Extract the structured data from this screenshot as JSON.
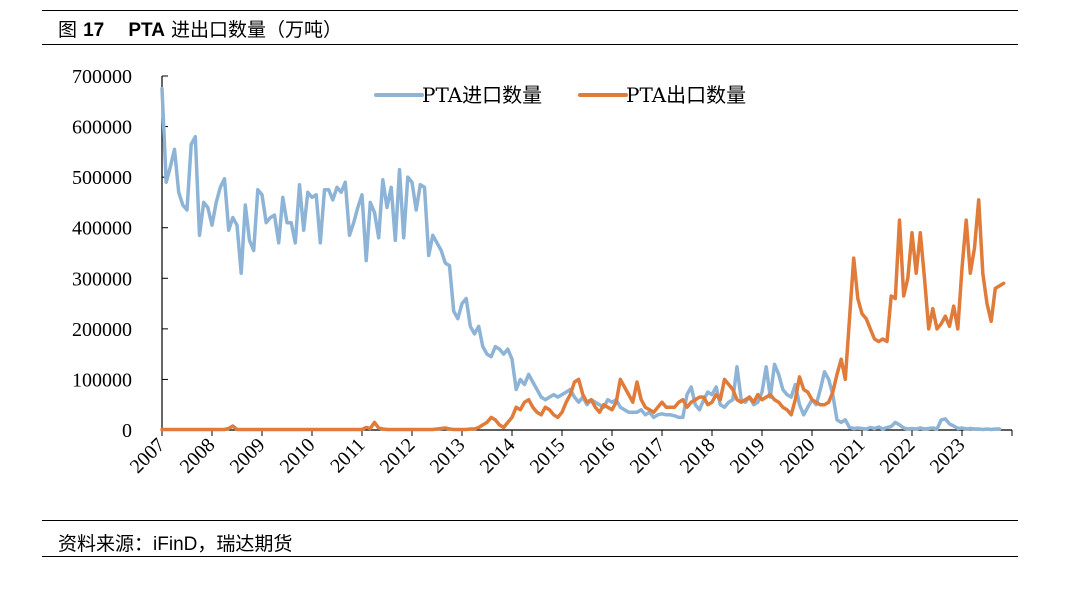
{
  "figure": {
    "label": "图",
    "number": "17",
    "title_prefix": "PTA",
    "title_suffix": "进出口数量（万吨）"
  },
  "source": {
    "prefix": "资料来源：",
    "brand": "iFinD",
    "suffix": "，瑞达期货"
  },
  "chart_data": {
    "type": "line",
    "title": "PTA 进出口数量（万吨）",
    "xlabel": "",
    "ylabel": "",
    "ylim": [
      0,
      700000
    ],
    "yticks": [
      0,
      100000,
      200000,
      300000,
      400000,
      500000,
      600000,
      700000
    ],
    "xticks": [
      "2007",
      "2008",
      "2009",
      "2010",
      "2011",
      "2012",
      "2013",
      "2014",
      "2015",
      "2016",
      "2017",
      "2018",
      "2019",
      "2020",
      "2021",
      "2022",
      "2023"
    ],
    "legend_position": "top-center",
    "grid": false,
    "x_start": "2007-01",
    "x_step": "month",
    "series": [
      {
        "name": "PTA进口数量",
        "color": "#8db4d6",
        "values": [
          675000,
          490000,
          520000,
          555000,
          470000,
          445000,
          435000,
          565000,
          580000,
          385000,
          450000,
          440000,
          405000,
          450000,
          480000,
          497000,
          395000,
          420000,
          405000,
          310000,
          445000,
          375000,
          355000,
          475000,
          465000,
          410000,
          420000,
          425000,
          370000,
          460000,
          410000,
          410000,
          370000,
          485000,
          395000,
          470000,
          460000,
          465000,
          370000,
          475000,
          475000,
          455000,
          480000,
          470000,
          490000,
          385000,
          410000,
          440000,
          465000,
          335000,
          450000,
          430000,
          380000,
          495000,
          440000,
          480000,
          375000,
          515000,
          380000,
          500000,
          490000,
          435000,
          485000,
          480000,
          345000,
          385000,
          370000,
          355000,
          330000,
          325000,
          235000,
          220000,
          250000,
          260000,
          205000,
          190000,
          205000,
          165000,
          150000,
          145000,
          165000,
          160000,
          150000,
          160000,
          140000,
          80000,
          100000,
          90000,
          110000,
          95000,
          80000,
          65000,
          60000,
          65000,
          70000,
          65000,
          70000,
          75000,
          80000,
          65000,
          55000,
          65000,
          50000,
          60000,
          55000,
          50000,
          45000,
          60000,
          55000,
          60000,
          45000,
          40000,
          35000,
          35000,
          35000,
          40000,
          30000,
          35000,
          25000,
          30000,
          32000,
          30000,
          30000,
          28000,
          25000,
          25000,
          70000,
          85000,
          50000,
          40000,
          60000,
          75000,
          70000,
          85000,
          50000,
          45000,
          55000,
          60000,
          125000,
          60000,
          55000,
          65000,
          50000,
          55000,
          75000,
          125000,
          65000,
          130000,
          110000,
          80000,
          70000,
          65000,
          90000,
          50000,
          30000,
          45000,
          60000,
          50000,
          80000,
          115000,
          100000,
          70000,
          20000,
          15000,
          20000,
          5000,
          3000,
          4000,
          3000,
          2000,
          5000,
          3000,
          6000,
          2000,
          5000,
          7000,
          15000,
          10000,
          4000,
          2000,
          3000,
          2000,
          4000,
          2000,
          3000,
          4000,
          2000,
          20000,
          22000,
          12000,
          8000,
          3000,
          4000,
          2000,
          3000,
          2000,
          2000,
          1000,
          2000,
          1000,
          2000,
          2000
        ]
      },
      {
        "name": "PTA出口数量",
        "color": "#e07b39",
        "values": [
          1000,
          1000,
          1000,
          1000,
          1000,
          1000,
          1000,
          1000,
          1000,
          1000,
          1000,
          1000,
          1000,
          1000,
          1000,
          1000,
          3000,
          8000,
          1000,
          1000,
          1000,
          1000,
          1000,
          1000,
          1000,
          1000,
          1000,
          1000,
          1000,
          1000,
          1000,
          1000,
          1000,
          1000,
          1000,
          1000,
          1000,
          1000,
          1000,
          1000,
          1000,
          1000,
          1000,
          1000,
          1000,
          1000,
          1000,
          1000,
          1000,
          5000,
          3000,
          15000,
          4000,
          2000,
          1000,
          1000,
          1000,
          1000,
          1000,
          1000,
          1000,
          1000,
          1000,
          1000,
          1000,
          1000,
          2000,
          3000,
          4000,
          2000,
          1000,
          1000,
          1000,
          1000,
          2000,
          2000,
          5000,
          10000,
          15000,
          25000,
          20000,
          10000,
          5000,
          15000,
          25000,
          45000,
          40000,
          55000,
          60000,
          45000,
          35000,
          30000,
          45000,
          40000,
          30000,
          25000,
          35000,
          55000,
          70000,
          95000,
          100000,
          70000,
          55000,
          60000,
          45000,
          35000,
          50000,
          45000,
          40000,
          55000,
          100000,
          85000,
          70000,
          55000,
          95000,
          60000,
          45000,
          40000,
          35000,
          45000,
          55000,
          45000,
          45000,
          45000,
          55000,
          60000,
          45000,
          55000,
          60000,
          65000,
          65000,
          50000,
          55000,
          70000,
          60000,
          100000,
          90000,
          80000,
          60000,
          55000,
          60000,
          65000,
          55000,
          70000,
          60000,
          65000,
          70000,
          60000,
          55000,
          45000,
          40000,
          30000,
          60000,
          105000,
          80000,
          75000,
          60000,
          55000,
          50000,
          50000,
          55000,
          75000,
          110000,
          140000,
          100000,
          220000,
          340000,
          260000,
          230000,
          220000,
          200000,
          180000,
          175000,
          180000,
          175000,
          265000,
          260000,
          415000,
          265000,
          300000,
          390000,
          310000,
          390000,
          300000,
          200000,
          240000,
          200000,
          210000,
          225000,
          205000,
          245000,
          200000,
          320000,
          415000,
          310000,
          360000,
          455000,
          310000,
          250000,
          215000,
          280000,
          285000,
          290000
        ]
      }
    ]
  }
}
